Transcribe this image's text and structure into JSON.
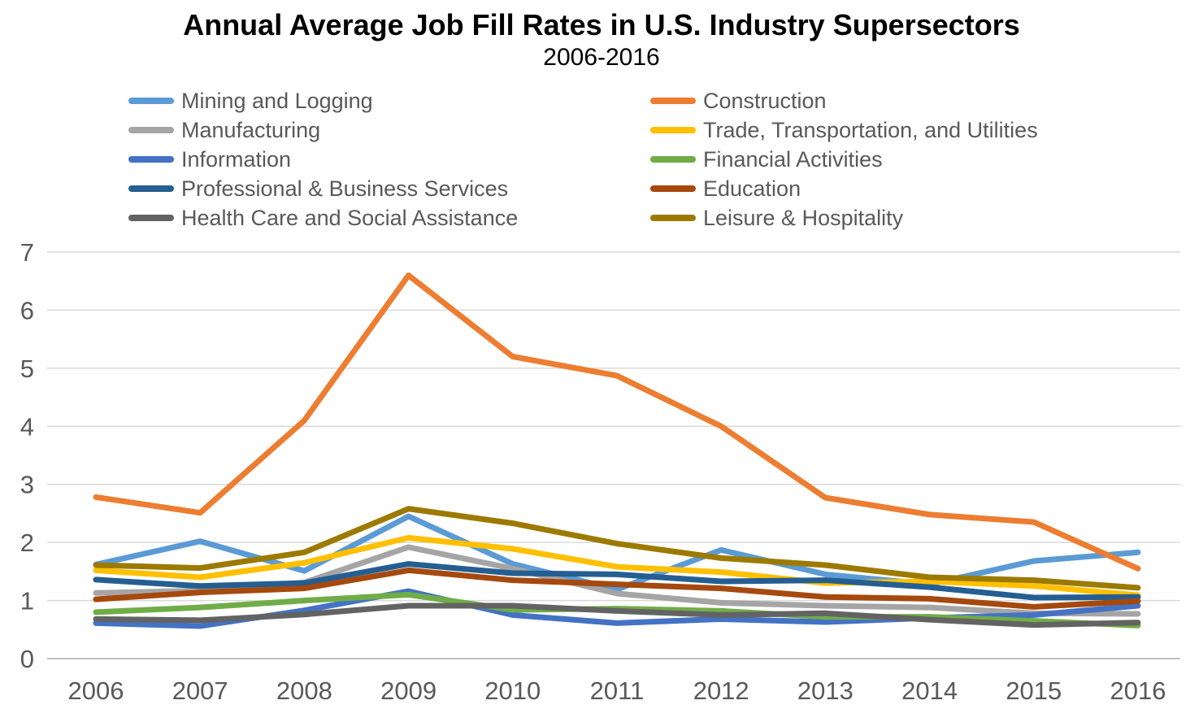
{
  "title": "Annual Average Job Fill Rates in U.S. Industry Supersectors",
  "subtitle": "2006-2016",
  "chart_data": {
    "type": "line",
    "title": "Annual Average Job Fill Rates in U.S. Industry Supersectors",
    "subtitle": "2006-2016",
    "xlabel": "",
    "ylabel": "",
    "x": [
      "2006",
      "2007",
      "2008",
      "2009",
      "2010",
      "2011",
      "2012",
      "2013",
      "2014",
      "2015",
      "2016"
    ],
    "ylim": [
      0,
      7
    ],
    "yticks": [
      "0",
      "1",
      "2",
      "3",
      "4",
      "5",
      "6",
      "7"
    ],
    "grid": true,
    "legend_position": "top, two columns",
    "legend_columns": [
      [
        "Mining and Logging",
        "Manufacturing",
        "Information",
        "Professional & Business Services",
        "Health Care and Social Assistance"
      ],
      [
        "Construction",
        "Trade, Transportation, and Utilities",
        "Financial Activities",
        "Education",
        "Leisure & Hospitality"
      ]
    ],
    "series": [
      {
        "name": "Mining and Logging",
        "color": "#5B9BD5",
        "values": [
          1.62,
          2.02,
          1.51,
          2.45,
          1.63,
          1.19,
          1.87,
          1.45,
          1.28,
          1.68,
          1.83
        ]
      },
      {
        "name": "Construction",
        "color": "#ED7D31",
        "values": [
          2.78,
          2.51,
          4.1,
          6.6,
          5.2,
          4.87,
          4.0,
          2.77,
          2.48,
          2.35,
          1.55
        ]
      },
      {
        "name": "Manufacturing",
        "color": "#A5A5A5",
        "values": [
          1.13,
          1.17,
          1.31,
          1.92,
          1.55,
          1.12,
          0.96,
          0.91,
          0.88,
          0.78,
          0.77
        ]
      },
      {
        "name": "Trade, Transportation, and Utilities",
        "color": "#FFC000",
        "values": [
          1.52,
          1.4,
          1.65,
          2.08,
          1.89,
          1.58,
          1.49,
          1.3,
          1.33,
          1.25,
          1.09
        ]
      },
      {
        "name": "Information",
        "color": "#4472C4",
        "values": [
          0.61,
          0.56,
          0.83,
          1.16,
          0.75,
          0.61,
          0.68,
          0.63,
          0.7,
          0.75,
          0.91
        ]
      },
      {
        "name": "Financial Activities",
        "color": "#70AD47",
        "values": [
          0.8,
          0.88,
          1.0,
          1.1,
          0.84,
          0.86,
          0.82,
          0.72,
          0.72,
          0.65,
          0.57
        ]
      },
      {
        "name": "Professional & Business Services",
        "color": "#255E91",
        "values": [
          1.36,
          1.25,
          1.3,
          1.63,
          1.47,
          1.45,
          1.33,
          1.35,
          1.23,
          1.05,
          1.06
        ]
      },
      {
        "name": "Education",
        "color": "#A6490E",
        "values": [
          1.02,
          1.14,
          1.21,
          1.52,
          1.35,
          1.28,
          1.21,
          1.06,
          1.03,
          0.89,
          0.99
        ]
      },
      {
        "name": "Health Care and Social Assistance",
        "color": "#636363",
        "values": [
          0.68,
          0.66,
          0.76,
          0.91,
          0.91,
          0.82,
          0.75,
          0.78,
          0.67,
          0.58,
          0.62
        ]
      },
      {
        "name": "Leisure & Hospitality",
        "color": "#9C7A00",
        "values": [
          1.61,
          1.56,
          1.83,
          2.58,
          2.33,
          1.98,
          1.73,
          1.61,
          1.4,
          1.35,
          1.22
        ]
      }
    ],
    "style": {
      "gridline_color": "#D9D9D9",
      "axis_line_color": "#BFBFBF",
      "tick_label_color": "#595959",
      "line_width": 7
    }
  }
}
